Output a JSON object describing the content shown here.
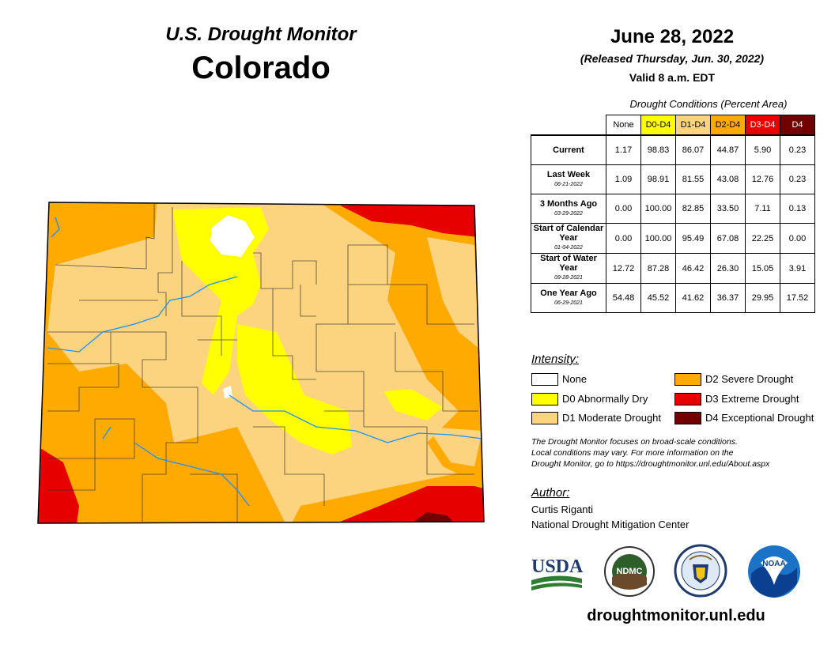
{
  "header": {
    "program": "U.S. Drought Monitor",
    "state": "Colorado"
  },
  "release": {
    "date": "June 28, 2022",
    "released": "(Released Thursday, Jun. 30, 2022)",
    "valid": "Valid 8 a.m. EDT"
  },
  "table": {
    "caption": "Drought Conditions (Percent Area)",
    "columns": [
      "None",
      "D0-D4",
      "D1-D4",
      "D2-D4",
      "D3-D4",
      "D4"
    ],
    "column_colors": [
      "#ffffff",
      "#ffff00",
      "#fcd37f",
      "#ffaa00",
      "#e60000",
      "#730000"
    ],
    "column_text_colors": [
      "#000000",
      "#000000",
      "#000000",
      "#000000",
      "#ffffff",
      "#ffffff"
    ],
    "rows": [
      {
        "label": "Current",
        "date": "",
        "values": [
          "1.17",
          "98.83",
          "86.07",
          "44.87",
          "5.90",
          "0.23"
        ]
      },
      {
        "label": "Last Week",
        "date": "06-21-2022",
        "values": [
          "1.09",
          "98.91",
          "81.55",
          "43.08",
          "12.76",
          "0.23"
        ]
      },
      {
        "label": "3 Months Ago",
        "date": "03-29-2022",
        "values": [
          "0.00",
          "100.00",
          "82.85",
          "33.50",
          "7.11",
          "0.13"
        ]
      },
      {
        "label": "Start of Calendar Year",
        "date": "01-04-2022",
        "values": [
          "0.00",
          "100.00",
          "95.49",
          "67.08",
          "22.25",
          "0.00"
        ]
      },
      {
        "label": "Start of Water Year",
        "date": "09-28-2021",
        "values": [
          "12.72",
          "87.28",
          "46.42",
          "26.30",
          "15.05",
          "3.91"
        ]
      },
      {
        "label": "One Year Ago",
        "date": "06-29-2021",
        "values": [
          "54.48",
          "45.52",
          "41.62",
          "36.37",
          "29.95",
          "17.52"
        ]
      }
    ]
  },
  "legend": {
    "title": "Intensity:",
    "items": [
      {
        "label": "None",
        "color": "#ffffff"
      },
      {
        "label": "D0 Abnormally Dry",
        "color": "#ffff00"
      },
      {
        "label": "D1 Moderate Drought",
        "color": "#fcd37f"
      },
      {
        "label": "D2 Severe Drought",
        "color": "#ffaa00"
      },
      {
        "label": "D3 Extreme Drought",
        "color": "#e60000"
      },
      {
        "label": "D4 Exceptional Drought",
        "color": "#730000"
      }
    ]
  },
  "note": {
    "line1": "The Drought Monitor focuses on broad-scale conditions.",
    "line2": "Local conditions may vary. For more information on the",
    "line3": "Drought Monitor, go to https://droughtmonitor.unl.edu/About.aspx"
  },
  "author": {
    "title": "Author:",
    "name": "Curtis Riganti",
    "org": "National Drought Mitigation Center"
  },
  "logos": {
    "usda": "USDA",
    "ndmc": "NDMC",
    "noaa": "NOAA"
  },
  "footer": {
    "url": "droughtmonitor.unl.edu"
  }
}
